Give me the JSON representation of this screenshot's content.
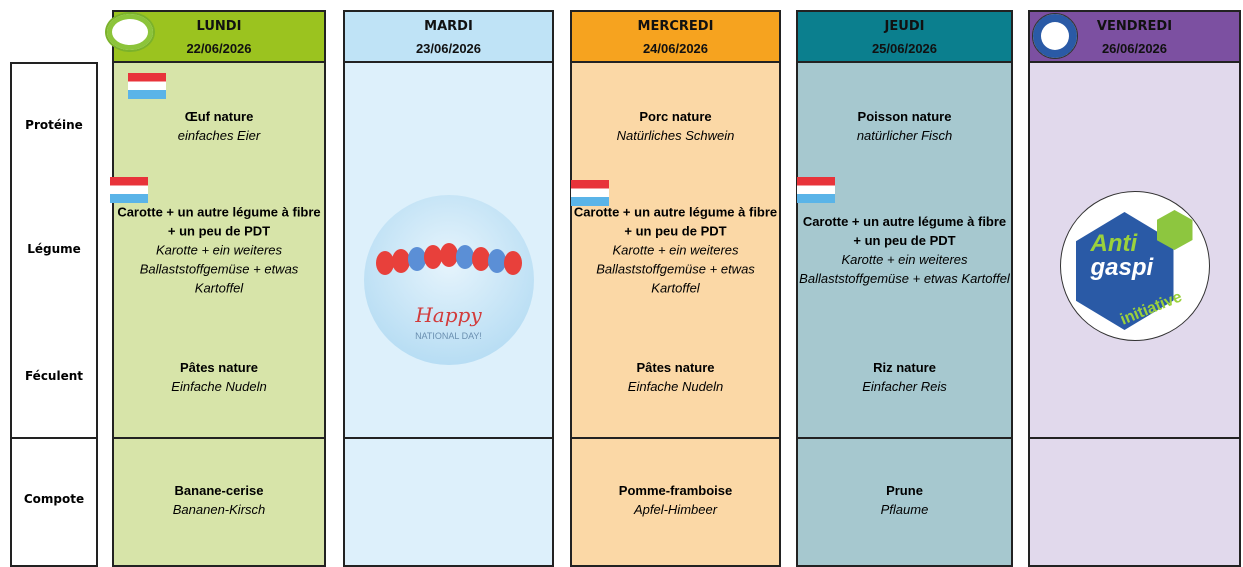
{
  "row_labels": [
    "Protéine",
    "Légume",
    "Féculent",
    "Compote"
  ],
  "days": [
    {
      "day": "LUNDI",
      "date": "22/06/2026",
      "meals": [
        {
          "fr": "Œuf nature",
          "de": "einfaches Eier"
        },
        {
          "fr": "Carotte + un autre légume à fibre + un peu de PDT",
          "de": "Karotte + ein weiteres Ballaststoffgemüse + etwas Kartoffel"
        },
        {
          "fr": "Pâtes nature",
          "de": "Einfache Nudeln"
        },
        {
          "fr": "Banane-cerise",
          "de": "Bananen-Kirsch"
        }
      ]
    },
    {
      "day": "MARDI",
      "date": "23/06/2026",
      "image_text": [
        "Happy",
        "NATIONAL DAY!"
      ]
    },
    {
      "day": "MERCREDI",
      "date": "24/06/2026",
      "meals": [
        {
          "fr": "Porc nature",
          "de": "Natürliches Schwein"
        },
        {
          "fr": "Carotte + un autre légume à fibre + un peu de PDT",
          "de": "Karotte + ein weiteres Ballaststoffgemüse + etwas Kartoffel"
        },
        {
          "fr": "Pâtes nature",
          "de": "Einfache Nudeln"
        },
        {
          "fr": "Pomme-framboise",
          "de": "Apfel-Himbeer"
        }
      ]
    },
    {
      "day": "JEUDI",
      "date": "25/06/2026",
      "meals": [
        {
          "fr": "Poisson nature",
          "de": "natürlicher Fisch"
        },
        {
          "fr": "Carotte + un autre légume à fibre + un peu de PDT",
          "de": "Karotte + ein weiteres Ballaststoffgemüse + etwas Kartoffel"
        },
        {
          "fr": "Riz nature",
          "de": "Einfacher Reis"
        },
        {
          "fr": "Prune",
          "de": "Pflaume"
        }
      ]
    },
    {
      "day": "VENDREDI",
      "date": "26/06/2026",
      "logo_text": [
        "Anti",
        "gaspi",
        "initiative"
      ]
    }
  ]
}
